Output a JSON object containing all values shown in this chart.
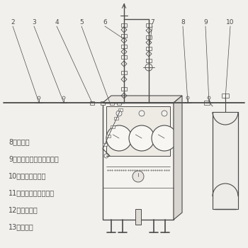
{
  "bg_color": "#f2f0ec",
  "line_color": "#4a4a4a",
  "legend_lines": [
    "8、指示灯",
    "9、感应式电接点、压力表",
    "10、自动切换装置",
    "11、报警压力设定旋钮",
    "12、回形导管",
    "13、氧气瓶"
  ],
  "font_size_legend": 7.0,
  "font_size_label": 6.5
}
